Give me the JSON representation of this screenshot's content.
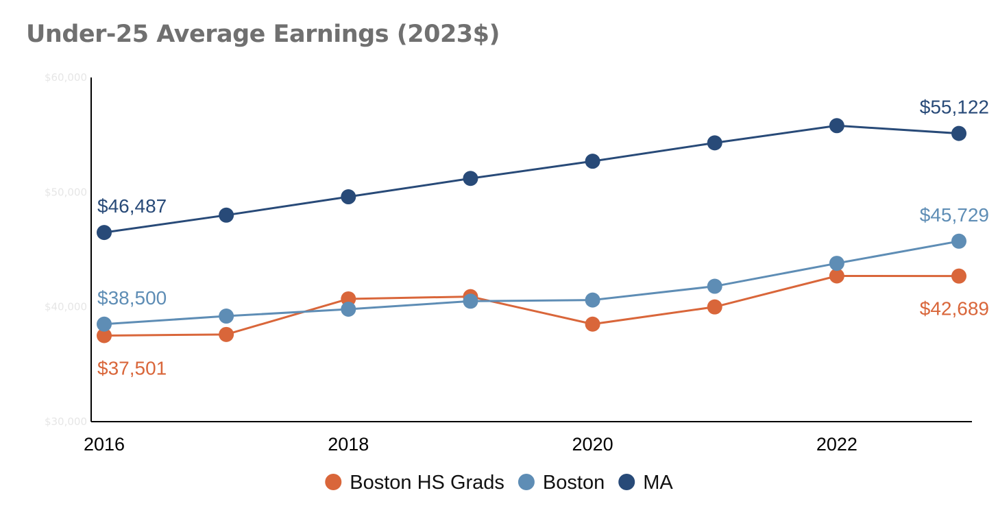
{
  "chart_data": {
    "type": "line",
    "title": "Under-25 Average Earnings (2023$)",
    "xlabel": "",
    "ylabel": "",
    "x": [
      2016,
      2017,
      2018,
      2019,
      2020,
      2021,
      2022,
      2023
    ],
    "x_tick_values": [
      2016,
      2018,
      2020,
      2022
    ],
    "x_tick_labels": [
      "2016",
      "2018",
      "2020",
      "2022"
    ],
    "ylim": [
      30000,
      60000
    ],
    "y_tick_values": [
      30000,
      40000,
      50000,
      60000
    ],
    "y_tick_labels": [
      "$30,000",
      "$40,000",
      "$50,000",
      "$60,000"
    ],
    "grid": false,
    "legend_position": "bottom",
    "series": [
      {
        "name": "Boston HS Grads",
        "color": "#D9663A",
        "values": [
          37501,
          37600,
          40700,
          40900,
          38500,
          40000,
          42700,
          42689
        ],
        "labels": [
          {
            "index": 0,
            "text": "$37,501",
            "placement": "below"
          },
          {
            "index": 7,
            "text": "$42,689",
            "placement": "below"
          }
        ]
      },
      {
        "name": "Boston",
        "color": "#5E8DB5",
        "values": [
          38500,
          39200,
          39800,
          40500,
          40600,
          41800,
          43800,
          45729
        ],
        "labels": [
          {
            "index": 0,
            "text": "$38,500",
            "placement": "above"
          },
          {
            "index": 7,
            "text": "$45,729",
            "placement": "above"
          }
        ]
      },
      {
        "name": "MA",
        "color": "#284A78",
        "values": [
          46487,
          48000,
          49600,
          51200,
          52700,
          54300,
          55800,
          55122
        ],
        "labels": [
          {
            "index": 0,
            "text": "$46,487",
            "placement": "above"
          },
          {
            "index": 7,
            "text": "$55,122",
            "placement": "above"
          }
        ]
      }
    ]
  }
}
